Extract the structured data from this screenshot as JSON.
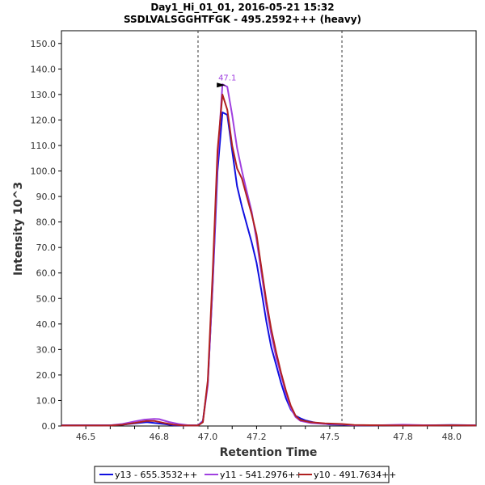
{
  "chart_data": {
    "type": "line",
    "title": "Day1_Hi_01_01, 2016-05-21 15:32",
    "subtitle": "SSDLVALSGGHTFGK - 495.2592+++ (heavy)",
    "xlabel": "Retention Time",
    "ylabel": "Intensity 10^3",
    "xlim": [
      46.4,
      48.1
    ],
    "ylim": [
      0,
      155
    ],
    "xticks": [
      46.5,
      46.6,
      46.7,
      46.8,
      46.9,
      47.0,
      47.1,
      47.2,
      47.3,
      47.4,
      47.5,
      47.6,
      47.7,
      47.8,
      47.9,
      48.0
    ],
    "xtick_labels": [
      "46.5",
      "46.8",
      "47.0",
      "47.2",
      "47.5",
      "47.8",
      "48.0"
    ],
    "xtick_label_values": [
      46.5,
      46.8,
      47.0,
      47.2,
      47.5,
      47.8,
      48.0
    ],
    "yticks": [
      0,
      10,
      20,
      30,
      40,
      50,
      60,
      70,
      80,
      90,
      100,
      110,
      120,
      130,
      140,
      150
    ],
    "ytick_labels": [
      "0.0",
      "10.0",
      "20.0",
      "30.0",
      "40.0",
      "50.0",
      "60.0",
      "70.0",
      "80.0",
      "90.0",
      "100.0",
      "110.0",
      "120.0",
      "130.0",
      "140.0",
      "150.0"
    ],
    "integration_boundaries": [
      46.96,
      47.55
    ],
    "peak_annotation": {
      "text": "47.1",
      "x": 47.08,
      "y": 134
    },
    "series": [
      {
        "name": "y13 - 655.3532++",
        "color": "#1010e0",
        "points": [
          [
            46.4,
            0.3
          ],
          [
            46.5,
            0.3
          ],
          [
            46.6,
            0.3
          ],
          [
            46.65,
            0.5
          ],
          [
            46.7,
            1.0
          ],
          [
            46.75,
            1.5
          ],
          [
            46.78,
            1.2
          ],
          [
            46.82,
            0.8
          ],
          [
            46.86,
            0.3
          ],
          [
            46.9,
            0.2
          ],
          [
            46.96,
            0.3
          ],
          [
            46.98,
            2.0
          ],
          [
            47.0,
            17
          ],
          [
            47.02,
            55
          ],
          [
            47.04,
            100
          ],
          [
            47.06,
            123
          ],
          [
            47.08,
            122
          ],
          [
            47.1,
            108
          ],
          [
            47.12,
            94
          ],
          [
            47.14,
            86
          ],
          [
            47.16,
            79
          ],
          [
            47.18,
            72
          ],
          [
            47.2,
            64
          ],
          [
            47.22,
            53
          ],
          [
            47.24,
            41
          ],
          [
            47.26,
            31
          ],
          [
            47.28,
            24
          ],
          [
            47.3,
            17
          ],
          [
            47.32,
            11
          ],
          [
            47.34,
            6.5
          ],
          [
            47.36,
            4.0
          ],
          [
            47.38,
            3.0
          ],
          [
            47.4,
            2.2
          ],
          [
            47.44,
            1.3
          ],
          [
            47.5,
            0.6
          ],
          [
            47.55,
            0.5
          ],
          [
            47.6,
            0.3
          ],
          [
            47.7,
            0.3
          ],
          [
            47.8,
            0.3
          ],
          [
            47.9,
            0.3
          ],
          [
            48.0,
            0.4
          ],
          [
            48.1,
            0.3
          ]
        ]
      },
      {
        "name": "y11 - 541.2976++",
        "color": "#a040e0",
        "points": [
          [
            46.4,
            0.2
          ],
          [
            46.5,
            0.2
          ],
          [
            46.6,
            0.3
          ],
          [
            46.65,
            0.8
          ],
          [
            46.7,
            1.8
          ],
          [
            46.74,
            2.5
          ],
          [
            46.78,
            2.8
          ],
          [
            46.8,
            2.7
          ],
          [
            46.84,
            1.6
          ],
          [
            46.88,
            0.8
          ],
          [
            46.92,
            0.3
          ],
          [
            46.96,
            0.3
          ],
          [
            46.98,
            1.8
          ],
          [
            47.0,
            16
          ],
          [
            47.02,
            56
          ],
          [
            47.04,
            104
          ],
          [
            47.06,
            134
          ],
          [
            47.08,
            133
          ],
          [
            47.1,
            122
          ],
          [
            47.12,
            109
          ],
          [
            47.14,
            100
          ],
          [
            47.16,
            92
          ],
          [
            47.18,
            84
          ],
          [
            47.2,
            73
          ],
          [
            47.22,
            60
          ],
          [
            47.24,
            47
          ],
          [
            47.26,
            36
          ],
          [
            47.28,
            27
          ],
          [
            47.3,
            20
          ],
          [
            47.32,
            13
          ],
          [
            47.34,
            7
          ],
          [
            47.36,
            3.5
          ],
          [
            47.38,
            2.0
          ],
          [
            47.42,
            1.2
          ],
          [
            47.48,
            0.8
          ],
          [
            47.55,
            0.6
          ],
          [
            47.6,
            0.3
          ],
          [
            47.7,
            0.3
          ],
          [
            47.8,
            0.5
          ],
          [
            47.9,
            0.3
          ],
          [
            48.0,
            0.3
          ],
          [
            48.1,
            0.3
          ]
        ]
      },
      {
        "name": "y10 - 491.7634++",
        "color": "#b02020",
        "points": [
          [
            46.4,
            0.2
          ],
          [
            46.5,
            0.2
          ],
          [
            46.6,
            0.2
          ],
          [
            46.65,
            0.5
          ],
          [
            46.7,
            1.2
          ],
          [
            46.75,
            2.0
          ],
          [
            46.78,
            2.0
          ],
          [
            46.82,
            1.2
          ],
          [
            46.86,
            0.5
          ],
          [
            46.9,
            0.2
          ],
          [
            46.96,
            0.2
          ],
          [
            46.98,
            1.5
          ],
          [
            47.0,
            18
          ],
          [
            47.02,
            60
          ],
          [
            47.04,
            108
          ],
          [
            47.06,
            130
          ],
          [
            47.08,
            124
          ],
          [
            47.1,
            110
          ],
          [
            47.12,
            101
          ],
          [
            47.14,
            97
          ],
          [
            47.16,
            90
          ],
          [
            47.18,
            83
          ],
          [
            47.2,
            75
          ],
          [
            47.22,
            62
          ],
          [
            47.24,
            49
          ],
          [
            47.26,
            38
          ],
          [
            47.28,
            29
          ],
          [
            47.3,
            21
          ],
          [
            47.32,
            14
          ],
          [
            47.34,
            8
          ],
          [
            47.36,
            4.0
          ],
          [
            47.38,
            2.3
          ],
          [
            47.42,
            1.5
          ],
          [
            47.48,
            1.0
          ],
          [
            47.55,
            0.8
          ],
          [
            47.6,
            0.4
          ],
          [
            47.7,
            0.3
          ],
          [
            47.8,
            0.2
          ],
          [
            47.9,
            0.2
          ],
          [
            48.0,
            0.3
          ],
          [
            48.1,
            0.2
          ]
        ]
      }
    ],
    "legend": {
      "position": "bottom",
      "entries": [
        "y13 - 655.3532++",
        "y11 - 541.2976++",
        "y10 - 491.7634++"
      ]
    },
    "colors": {
      "boundary": "#333333",
      "axis": "#000000",
      "annotation": "#a040e0",
      "marker": "#000000"
    }
  }
}
